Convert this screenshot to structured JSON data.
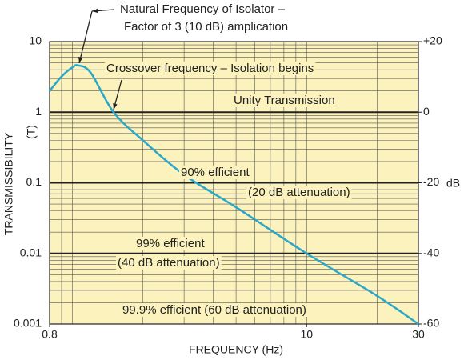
{
  "chart_data": {
    "type": "line",
    "annotations": [
      "Natural Frequency of Isolator –",
      "Factor of 3 (10 dB) amplication",
      "Crossover frequency – Isolation begins",
      "Unity Transmission",
      "90% efficient",
      "(20 dB attenuation)",
      "99% efficient",
      "(40 dB attenuation)",
      "99.9% efficient (60 dB attenuation)"
    ],
    "x_label": "FREQUENCY (Hz)",
    "y_label": "TRANSMISSIBILITY",
    "y_sublabel": "(T)",
    "y2_label": "dB",
    "x": [
      0.8,
      0.9,
      1.0,
      1.06,
      1.2,
      1.5,
      2,
      3,
      5,
      10,
      20,
      30
    ],
    "series": [
      {
        "color": "#2aa7c9",
        "values": [
          2.0,
          3.2,
          4.3,
          4.6,
          3.6,
          1.0,
          0.4,
          0.13,
          0.045,
          0.01,
          0.0025,
          0.001
        ]
      }
    ],
    "xlim": [
      0.8,
      30
    ],
    "xticks": [
      0.8,
      10,
      30
    ],
    "xlog": true,
    "ylim": [
      0.001,
      10
    ],
    "yticks": [
      10,
      1,
      0.1,
      0.01,
      0.001
    ],
    "ylog": true,
    "y2lim": [
      -60,
      20
    ],
    "y2ticks": [
      {
        "value": 20,
        "label": "+20"
      },
      0,
      -20,
      -40,
      -60
    ],
    "bold_lines": [
      1,
      0.1,
      0.01
    ],
    "grid": true,
    "minor_grid": true,
    "background": "#fbf2bd"
  }
}
